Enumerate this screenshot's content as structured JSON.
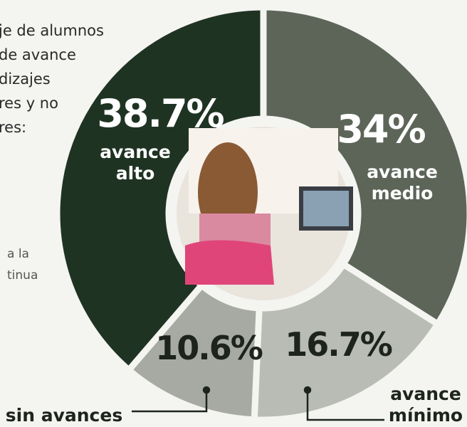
{
  "intro_lines": [
    "je de alumnos",
    "de avance",
    "dizajes",
    "res y no",
    "res:"
  ],
  "note_lines": [
    "a la",
    "tinua"
  ],
  "chart_data": {
    "type": "donut",
    "categories": [
      "avance medio",
      "avance mínimo",
      "sin avances",
      "avance alto"
    ],
    "values": [
      34,
      16.7,
      10.6,
      38.7
    ],
    "value_labels": [
      "34%",
      "16.7%",
      "10.6%",
      "38.7%"
    ],
    "colors": [
      "#5c6558",
      "#b9bcb5",
      "#a7aaa3",
      "#1f3322"
    ]
  }
}
